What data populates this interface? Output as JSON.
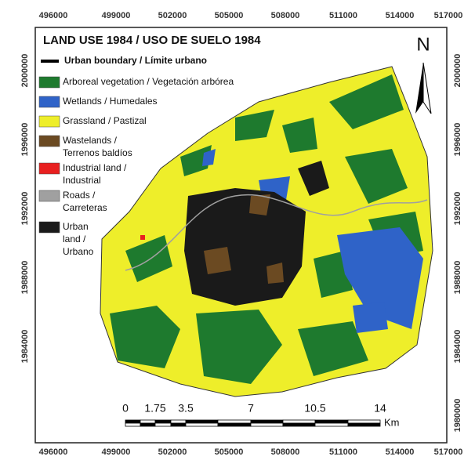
{
  "map": {
    "title": "LAND USE 1984 / USO DE SUELO 1984",
    "north": "N",
    "legend": [
      {
        "label": [
          "Urban boundary / Límite urbano"
        ],
        "color": "#000000",
        "kind": "line"
      },
      {
        "label": [
          "Arboreal vegetation / Vegetación arbórea"
        ],
        "color": "#1e7a2e",
        "kind": "patch"
      },
      {
        "label": [
          "Wetlands / Humedales"
        ],
        "color": "#2f63c8",
        "kind": "patch"
      },
      {
        "label": [
          "Grassland / Pastizal"
        ],
        "color": "#eeee2a",
        "kind": "patch"
      },
      {
        "label": [
          "Wastelands /",
          "Terrenos baldíos"
        ],
        "color": "#6b4a22",
        "kind": "patch"
      },
      {
        "label": [
          "Industrial land /",
          "Industrial"
        ],
        "color": "#e82020",
        "kind": "patch"
      },
      {
        "label": [
          "Roads /",
          "Carreteras"
        ],
        "color": "#a0a0a0",
        "kind": "patch"
      },
      {
        "label": [
          "Urban",
          "land /",
          "Urbano"
        ],
        "color": "#1a1a1a",
        "kind": "patch"
      }
    ],
    "x_labels_top": [
      "496000",
      "499000",
      "502000",
      "505000",
      "508000",
      "511000",
      "514000",
      "517000"
    ],
    "x_labels_bottom": [
      "496000",
      "499000",
      "502000",
      "505000",
      "508000",
      "511000",
      "514000",
      "517000"
    ],
    "y_labels_left": [
      "2000000",
      "1996000",
      "1992000",
      "1988000",
      "1984000"
    ],
    "y_labels_right": [
      "2000000",
      "1996000",
      "1992000",
      "1988000",
      "1984000",
      "1980000"
    ],
    "scale": {
      "labels": [
        "0",
        "1.75",
        "3.5",
        "7",
        "10.5",
        "14"
      ],
      "unit": "Km"
    }
  }
}
